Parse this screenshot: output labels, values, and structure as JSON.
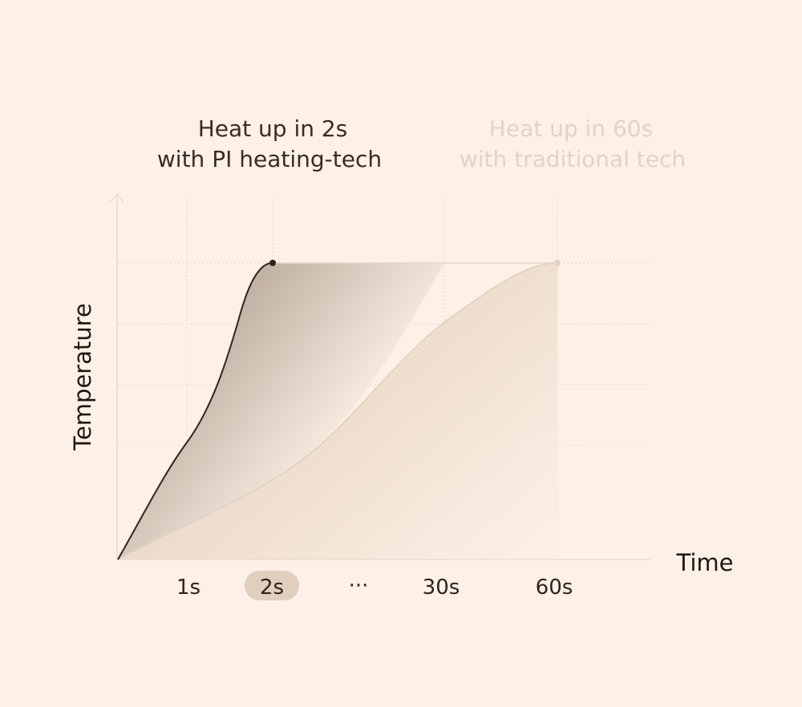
{
  "chart_data": {
    "type": "line",
    "xlabel": "Time",
    "ylabel": "Temperature",
    "x_ticks": [
      {
        "label": "1s",
        "highlight": false
      },
      {
        "label": "2s",
        "highlight": true
      },
      {
        "label": "···",
        "highlight": false
      },
      {
        "label": "30s",
        "highlight": false
      },
      {
        "label": "60s",
        "highlight": false
      }
    ],
    "ylim": [
      0,
      1
    ],
    "grid": true,
    "series": [
      {
        "caption": [
          "Heat up in 2s",
          "with PI heating-tech"
        ],
        "color": "#2f2520",
        "emphasis": "active",
        "reach_full_temperature_at": "2s"
      },
      {
        "caption": [
          "Heat up in 60s",
          "with traditional tech"
        ],
        "color": "#e3d3c4",
        "emphasis": "faded",
        "reach_full_temperature_at": "60s"
      }
    ],
    "colors": {
      "background": "#fdf0e6",
      "grid": "#e8dccf",
      "axis": "#e9ddd1",
      "highlight_pill": "#e0cfbf",
      "active_curve": "#2f2520",
      "faded_curve": "#e3d3c4"
    }
  }
}
